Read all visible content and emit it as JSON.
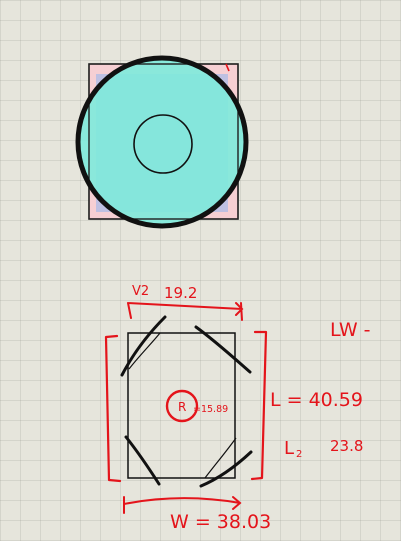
{
  "colors": {
    "background": "#e6e5dc",
    "ink": "#111111",
    "annotation": "#e4141b",
    "square_fill": "#f6cfd3",
    "circle_fill": "#7eeadb",
    "highlight": "#8fb5ef"
  },
  "annotations": {
    "v2_label": "V2",
    "v2_value": "19.2",
    "lw_label": "LW -",
    "r_label": "R",
    "r_value": "=15.89",
    "l_value": "L = 40.59",
    "l2_label": "L",
    "l2_sub": "2",
    "l2_value": "23.8",
    "w_value": "W = 38.03"
  }
}
